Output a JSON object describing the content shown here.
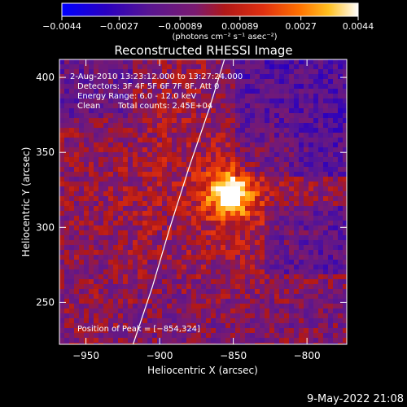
{
  "chart_data": {
    "type": "heatmap",
    "title": "Reconstructed RHESSI Image",
    "xlabel": "Heliocentric X (arcsec)",
    "ylabel": "Heliocentric Y (arcsec)",
    "xlim": [
      -968,
      -773
    ],
    "ylim": [
      222,
      412
    ],
    "x_ticks": [
      -950,
      -900,
      -850,
      -800
    ],
    "y_ticks": [
      250,
      300,
      350,
      400
    ],
    "x_tick_labels": [
      "−950",
      "−900",
      "−850",
      "−800"
    ],
    "y_tick_labels": [
      "250",
      "300",
      "350",
      "400"
    ],
    "colorbar": {
      "range": [
        -0.0044,
        0.0044
      ],
      "ticks": [
        -0.0044,
        -0.0027,
        -0.00089,
        0.00089,
        0.0027,
        0.0044
      ],
      "tick_labels": [
        "−0.0044",
        "−0.0027",
        "−0.00089",
        "0.00089",
        "0.0027",
        "0.0044"
      ],
      "unit_label": "(photons cm⁻² s⁻¹ asec⁻²)"
    },
    "peak": {
      "x": -854,
      "y": 324,
      "value": 0.0044
    },
    "limb_curve": [
      [
        -918,
        222
      ],
      [
        -905,
        260
      ],
      [
        -893,
        300
      ],
      [
        -880,
        340
      ],
      [
        -866,
        380
      ],
      [
        -856,
        412
      ]
    ],
    "annotations": {
      "time_range": "2-Aug-2010 13:23:12.000 to 13:27:24.000",
      "detectors": "Detectors: 3F 4F 5F 6F 7F 8F, Att 0",
      "energy": "Energy Range: 6.0 - 12.0 keV",
      "clean": "Clean",
      "counts": "Total counts: 2.45E+04",
      "peak_label": "Position of Peak = [−854,324]"
    }
  },
  "footer": {
    "timestamp": "9-May-2022 21:08"
  }
}
